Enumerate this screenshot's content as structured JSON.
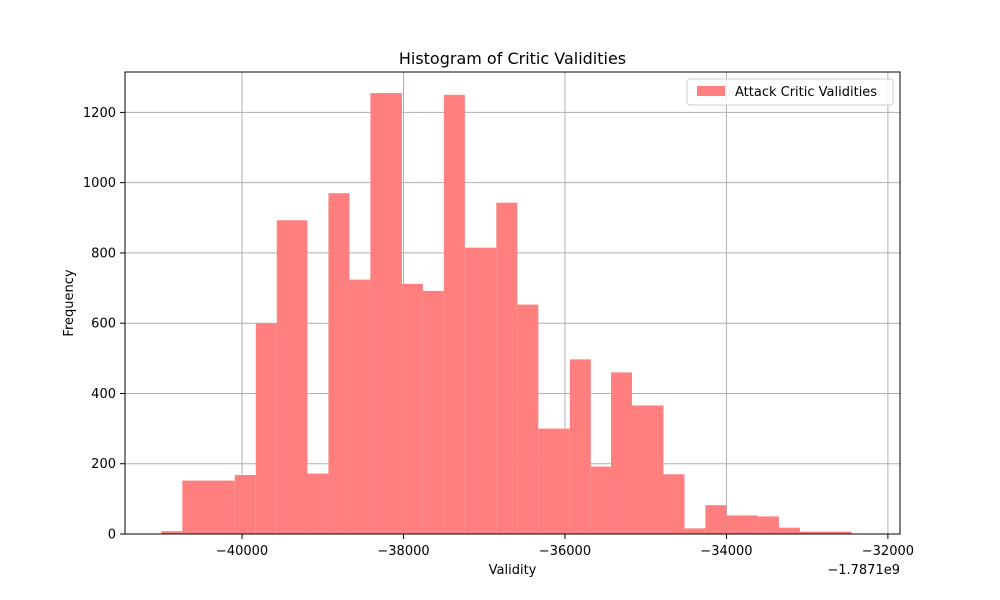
{
  "chart_data": {
    "type": "bar",
    "title": "Histogram of Critic Validities",
    "xlabel": "Validity",
    "ylabel": "Frequency",
    "x_offset_label": "−1.7871e9",
    "xlim": [
      -41450,
      -31850
    ],
    "ylim": [
      0,
      1315
    ],
    "x_ticks": [
      -40000,
      -38000,
      -36000,
      -34000,
      -32000
    ],
    "x_tick_labels": [
      "−40000",
      "−38000",
      "−36000",
      "−34000",
      "−32000"
    ],
    "y_ticks": [
      0,
      200,
      400,
      600,
      800,
      1000,
      1200
    ],
    "y_tick_labels": [
      "0",
      "200",
      "400",
      "600",
      "800",
      "1000",
      "1200"
    ],
    "grid": true,
    "legend_position": "top-right",
    "series": [
      {
        "name": "Attack Critic Validities",
        "color": "#ff7f7f",
        "bins": [
          [
            -41000,
            -40740,
            8
          ],
          [
            -40740,
            -40090,
            152
          ],
          [
            -40090,
            -39830,
            168
          ],
          [
            -39830,
            -39570,
            600
          ],
          [
            -39570,
            -39190,
            893
          ],
          [
            -39190,
            -38930,
            172
          ],
          [
            -38930,
            -38670,
            970
          ],
          [
            -38670,
            -38410,
            724
          ],
          [
            -38410,
            -38020,
            1255
          ],
          [
            -38020,
            -37760,
            712
          ],
          [
            -37760,
            -37500,
            692
          ],
          [
            -37500,
            -37240,
            1250
          ],
          [
            -37240,
            -36850,
            815
          ],
          [
            -36850,
            -36590,
            943
          ],
          [
            -36590,
            -36330,
            653
          ],
          [
            -36330,
            -35940,
            300
          ],
          [
            -35940,
            -35680,
            497
          ],
          [
            -35680,
            -35430,
            192
          ],
          [
            -35430,
            -35170,
            460
          ],
          [
            -35170,
            -34780,
            366
          ],
          [
            -34780,
            -34520,
            170
          ],
          [
            -34520,
            -34260,
            16
          ],
          [
            -34260,
            -34000,
            82
          ],
          [
            -34000,
            -33610,
            53
          ],
          [
            -33610,
            -33350,
            50
          ],
          [
            -33350,
            -33090,
            18
          ],
          [
            -33090,
            -32450,
            7
          ]
        ]
      }
    ]
  }
}
